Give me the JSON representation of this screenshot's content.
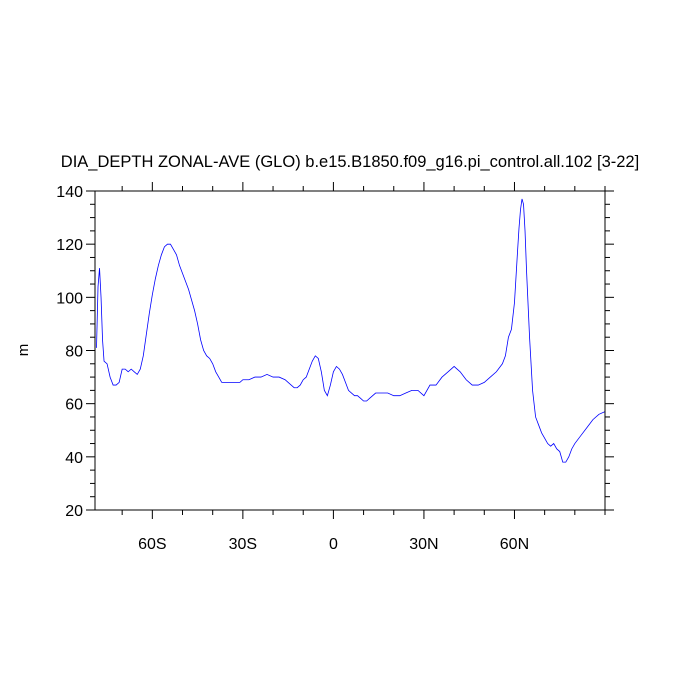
{
  "chart_data": {
    "type": "line",
    "title": "DIA_DEPTH ZONAL-AVE (GLO) b.e15.B1850.f09_g16.pi_control.all.102 [3-22]",
    "xlabel": "",
    "ylabel": "m",
    "xlim": [
      -79,
      90
    ],
    "ylim": [
      20,
      140
    ],
    "x_ticks": [
      -60,
      -30,
      0,
      30,
      60
    ],
    "x_tick_labels": [
      "60S",
      "30S",
      "0",
      "30N",
      "60N"
    ],
    "y_ticks": [
      20,
      40,
      60,
      80,
      100,
      120,
      140
    ],
    "y_tick_labels": [
      "20",
      "40",
      "60",
      "80",
      "100",
      "120",
      "140"
    ],
    "grid": false,
    "series": [
      {
        "color": "#0000ff",
        "x": [
          -78.5,
          -78,
          -77.5,
          -77,
          -76.5,
          -76,
          -75,
          -74,
          -73,
          -72,
          -71,
          -70,
          -69,
          -68,
          -67,
          -66,
          -65,
          -64,
          -63,
          -62,
          -61,
          -60,
          -59,
          -58,
          -57,
          -56,
          -55,
          -54,
          -53,
          -52,
          -51,
          -50,
          -49,
          -48,
          -47,
          -46,
          -45,
          -44,
          -43,
          -42,
          -41,
          -40,
          -39,
          -38,
          -37,
          -36,
          -35,
          -34,
          -33,
          -32,
          -31,
          -30,
          -28,
          -26,
          -24,
          -22,
          -20,
          -18,
          -16,
          -14,
          -13,
          -12,
          -11,
          -10,
          -9,
          -8,
          -7,
          -6,
          -5,
          -4,
          -3,
          -2,
          -1,
          0,
          1,
          2,
          3,
          4,
          5,
          6,
          7,
          8,
          9,
          10,
          11,
          12,
          14,
          16,
          18,
          20,
          22,
          24,
          26,
          28,
          30,
          32,
          34,
          36,
          38,
          40,
          42,
          44,
          46,
          48,
          50,
          52,
          54,
          56,
          57,
          58,
          59,
          60,
          61,
          61.5,
          62,
          62.5,
          63,
          63.5,
          64,
          65,
          66,
          67,
          68,
          69,
          70,
          71,
          72,
          73,
          74,
          75,
          76,
          77,
          78,
          79,
          80,
          82,
          84,
          86,
          88,
          90
        ],
        "y": [
          81,
          104,
          111,
          100,
          84,
          76,
          75,
          70,
          67,
          67,
          68,
          73,
          73,
          72,
          73,
          72,
          71,
          73,
          78,
          86,
          94,
          101,
          107,
          112,
          116,
          119,
          120,
          120,
          118,
          116,
          112,
          109,
          106,
          103,
          99,
          95,
          90,
          84,
          80,
          78,
          77,
          75,
          72,
          70,
          68,
          68,
          68,
          68,
          68,
          68,
          68,
          69,
          69,
          70,
          70,
          71,
          70,
          70,
          69,
          67,
          66,
          66,
          67,
          69,
          70,
          73,
          76,
          78,
          77,
          72,
          65,
          63,
          67,
          72,
          74,
          73,
          71,
          68,
          65,
          64,
          63,
          63,
          62,
          61,
          61,
          62,
          64,
          64,
          64,
          63,
          63,
          64,
          65,
          65,
          63,
          67,
          67,
          70,
          72,
          74,
          72,
          69,
          67,
          67,
          68,
          70,
          72,
          75,
          78,
          85,
          88,
          98,
          117,
          126,
          133,
          137,
          135,
          125,
          110,
          85,
          65,
          55,
          52,
          49,
          47,
          45,
          44,
          45,
          43,
          42,
          38,
          38,
          40,
          43,
          45,
          48,
          51,
          54,
          56,
          57
        ]
      }
    ]
  }
}
